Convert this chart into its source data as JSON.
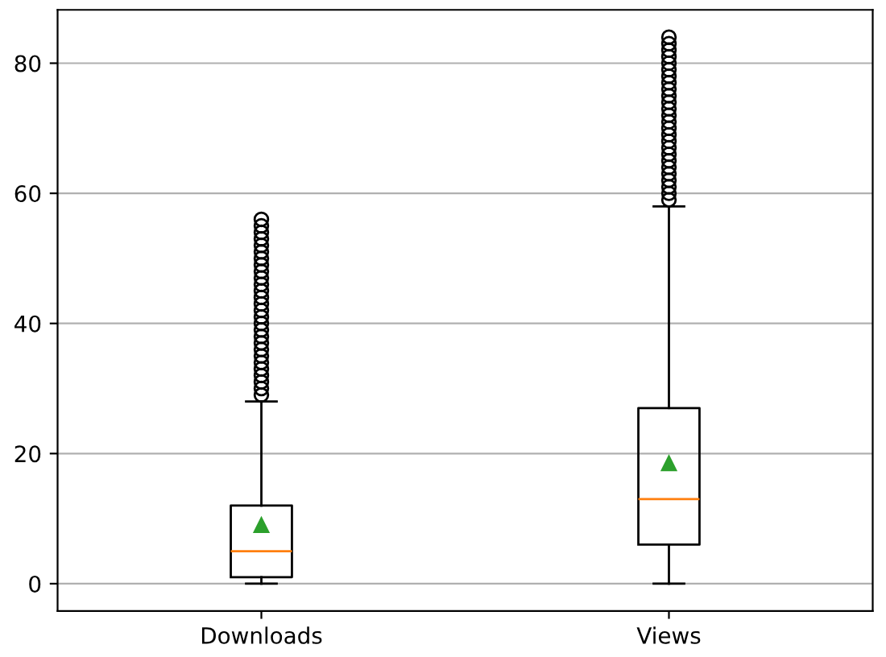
{
  "chart_data": {
    "type": "box",
    "categories": [
      "Downloads",
      "Views"
    ],
    "boxes": [
      {
        "low": 0,
        "q1": 1,
        "median": 5,
        "q3": 12,
        "high": 28,
        "mean": 9,
        "outliers": [
          29,
          30,
          31,
          32,
          33,
          34,
          35,
          36,
          37,
          38,
          39,
          40,
          41,
          42,
          43,
          44,
          45,
          46,
          47,
          48,
          49,
          50,
          51,
          52,
          53,
          54,
          55,
          56
        ]
      },
      {
        "low": 0,
        "q1": 6,
        "median": 13,
        "q3": 27,
        "high": 58,
        "mean": 18.5,
        "outliers": [
          59,
          60,
          61,
          62,
          63,
          64,
          65,
          66,
          67,
          68,
          69,
          70,
          71,
          72,
          73,
          74,
          75,
          76,
          77,
          78,
          79,
          80,
          81,
          82,
          83,
          84
        ]
      }
    ],
    "ylim": [
      -4.2,
      88.2
    ],
    "yticks": [
      0,
      20,
      40,
      60,
      80
    ],
    "grid": "y"
  }
}
